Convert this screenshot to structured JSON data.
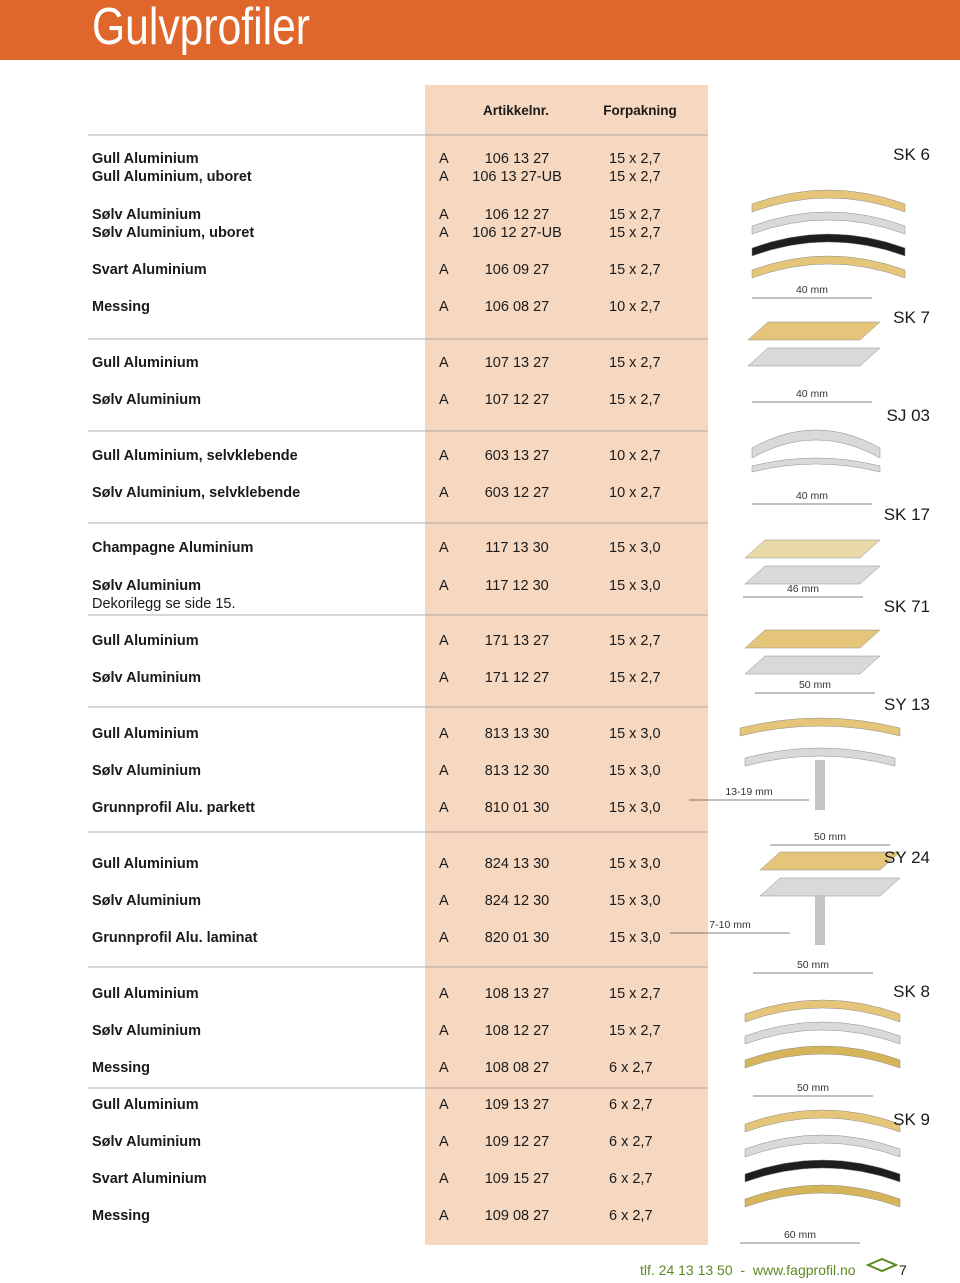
{
  "header": {
    "title": "Gulvprofiler"
  },
  "table": {
    "columns": [
      "Artikkelnr.",
      "Forpakning"
    ],
    "groups": [
      {
        "profile": "SK 6",
        "dimensions": [
          "40 mm"
        ],
        "rows": [
          {
            "name": "Gull Aluminium",
            "code": "A",
            "article": "106 13 27",
            "packaging": "15 x 2,7"
          },
          {
            "name": "Gull Aluminium, uboret",
            "code": "A",
            "article": "106 13 27-UB",
            "packaging": "15 x 2,7"
          },
          {
            "name": "Sølv Aluminium",
            "code": "A",
            "article": "106 12 27",
            "packaging": "15 x 2,7"
          },
          {
            "name": "Sølv Aluminium, uboret",
            "code": "A",
            "article": "106 12 27-UB",
            "packaging": "15 x 2,7"
          },
          {
            "name": "Svart Aluminium",
            "code": "A",
            "article": "106 09 27",
            "packaging": "15 x 2,7"
          },
          {
            "name": "Messing",
            "code": "A",
            "article": "106 08 27",
            "packaging": "10 x 2,7"
          }
        ]
      },
      {
        "profile": "SK 7",
        "dimensions": [
          "40 mm"
        ],
        "rows": [
          {
            "name": "Gull Aluminium",
            "code": "A",
            "article": "107 13 27",
            "packaging": "15 x 2,7"
          },
          {
            "name": "Sølv Aluminium",
            "code": "A",
            "article": "107 12 27",
            "packaging": "15 x 2,7"
          }
        ]
      },
      {
        "profile": "SJ 03",
        "dimensions": [
          "40 mm"
        ],
        "rows": [
          {
            "name": "Gull Aluminium, selvklebende",
            "code": "A",
            "article": "603 13 27",
            "packaging": "10 x 2,7"
          },
          {
            "name": "Sølv Aluminium, selvklebende",
            "code": "A",
            "article": "603 12 27",
            "packaging": "10 x 2,7"
          }
        ]
      },
      {
        "profile": "SK 17",
        "dimensions": [
          "46 mm"
        ],
        "note": "Dekorilegg se side 15.",
        "rows": [
          {
            "name": "Champagne Aluminium",
            "code": "A",
            "article": "117 13 30",
            "packaging": "15 x 3,0"
          },
          {
            "name": "Sølv Aluminium",
            "code": "A",
            "article": "117 12 30",
            "packaging": "15 x 3,0"
          }
        ]
      },
      {
        "profile": "SK 71",
        "dimensions": [
          "50 mm"
        ],
        "rows": [
          {
            "name": "Gull Aluminium",
            "code": "A",
            "article": "171 13 27",
            "packaging": "15 x 2,7"
          },
          {
            "name": "Sølv Aluminium",
            "code": "A",
            "article": "171 12 27",
            "packaging": "15 x 2,7"
          }
        ]
      },
      {
        "profile": "SY 13",
        "dimensions": [
          "13-19 mm"
        ],
        "rows": [
          {
            "name": "Gull Aluminium",
            "code": "A",
            "article": "813 13 30",
            "packaging": "15 x 3,0"
          },
          {
            "name": "Sølv Aluminium",
            "code": "A",
            "article": "813 12 30",
            "packaging": "15 x 3,0"
          },
          {
            "name": "Grunnprofil Alu. parkett",
            "code": "A",
            "article": "810 01 30",
            "packaging": "15 x 3,0"
          }
        ]
      },
      {
        "profile": "SY 24",
        "dimensions": [
          "50 mm",
          "7-10 mm",
          "50 mm"
        ],
        "rows": [
          {
            "name": "Gull Aluminium",
            "code": "A",
            "article": "824 13 30",
            "packaging": "15 x 3,0"
          },
          {
            "name": "Sølv Aluminium",
            "code": "A",
            "article": "824 12 30",
            "packaging": "15 x 3,0"
          },
          {
            "name": "Grunnprofil Alu. laminat",
            "code": "A",
            "article": "820 01 30",
            "packaging": "15 x 3,0"
          }
        ]
      },
      {
        "profile": "SK 8",
        "dimensions": [
          "50 mm"
        ],
        "rows": [
          {
            "name": "Gull Aluminium",
            "code": "A",
            "article": "108 13 27",
            "packaging": "15 x 2,7"
          },
          {
            "name": "Sølv Aluminium",
            "code": "A",
            "article": "108 12 27",
            "packaging": "15 x 2,7"
          },
          {
            "name": "Messing",
            "code": "A",
            "article": "108 08 27",
            "packaging": "6 x 2,7"
          }
        ]
      },
      {
        "profile": "SK 9",
        "dimensions": [
          "60 mm"
        ],
        "rows": [
          {
            "name": "Gull Aluminium",
            "code": "A",
            "article": "109 13 27",
            "packaging": "6 x 2,7"
          },
          {
            "name": "Sølv Aluminium",
            "code": "A",
            "article": "109 12 27",
            "packaging": "6 x 2,7"
          },
          {
            "name": "Svart Aluminium",
            "code": "A",
            "article": "109 15 27",
            "packaging": "6 x 2,7"
          },
          {
            "name": "Messing",
            "code": "A",
            "article": "109 08 27",
            "packaging": "6 x 2,7"
          }
        ]
      }
    ]
  },
  "footer": {
    "contact": "tlf. 24 13 13 50  -  www.fagprofil.no",
    "page": "7"
  }
}
